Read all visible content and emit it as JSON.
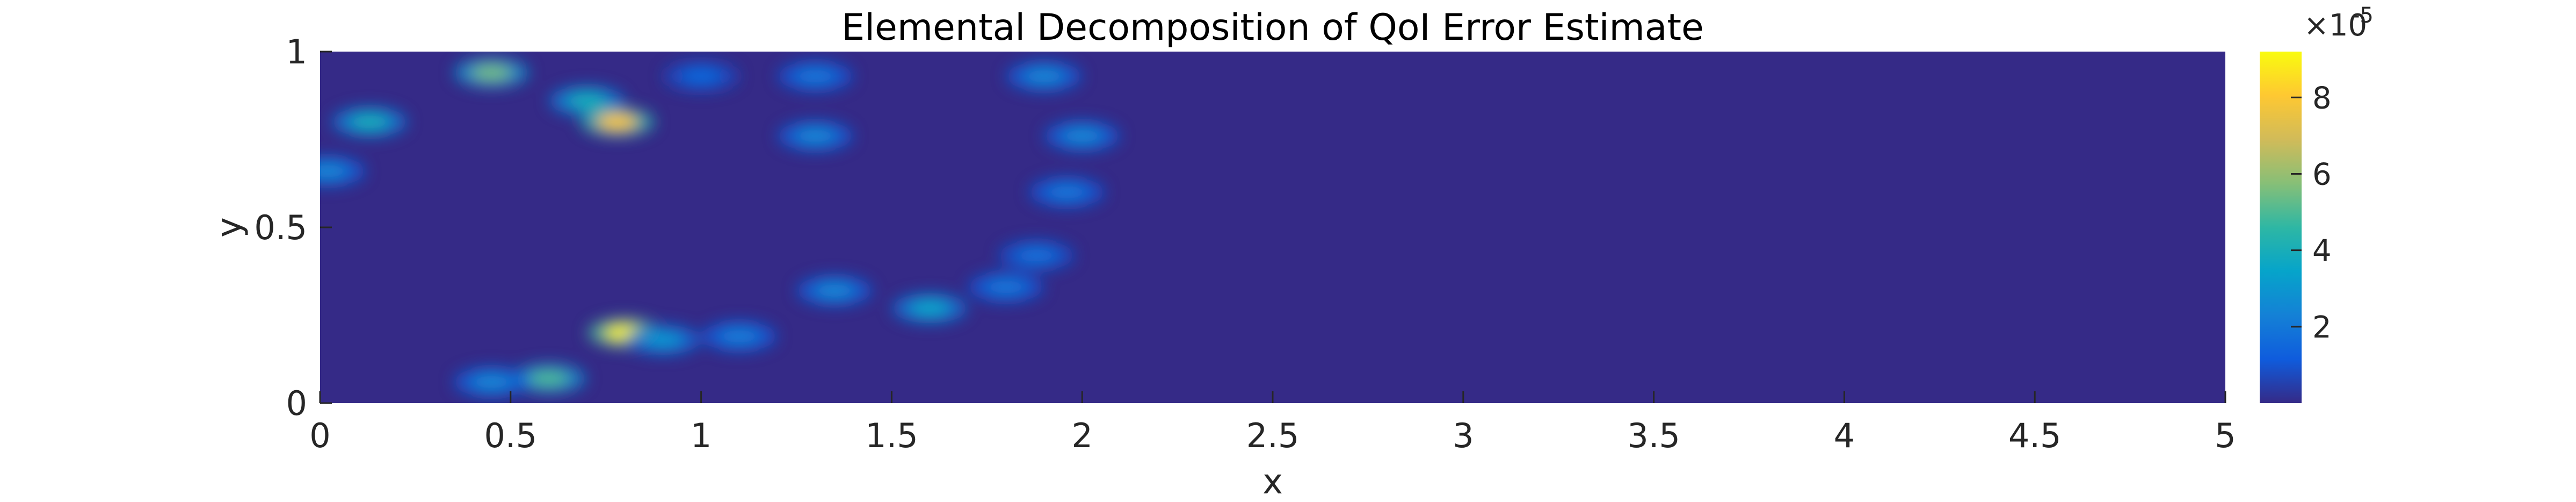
{
  "chart_data": {
    "type": "heatmap",
    "title": "Elemental Decomposition of QoI Error Estimate",
    "xlabel": "x",
    "ylabel": "y",
    "xlim": [
      0,
      5
    ],
    "ylim": [
      0,
      1
    ],
    "xticks": [
      "0",
      "0.5",
      "1",
      "1.5",
      "2",
      "2.5",
      "3",
      "3.5",
      "4",
      "4.5",
      "5"
    ],
    "yticks": [
      "0",
      "0.5",
      "1"
    ],
    "colormap": "parula",
    "colorbar": {
      "range": [
        0,
        9.2e-05
      ],
      "ticks": [
        "2",
        "4",
        "6",
        "8"
      ],
      "tick_values": [
        2e-05,
        4e-05,
        6e-05,
        8e-05
      ],
      "exponent_label": "×10",
      "exponent": "-5"
    },
    "grid": false,
    "hotspots": [
      {
        "x": 0.45,
        "y": 0.94,
        "value": 5.5e-05
      },
      {
        "x": 0.13,
        "y": 0.8,
        "value": 4e-05
      },
      {
        "x": 0.02,
        "y": 0.66,
        "value": 2.5e-05
      },
      {
        "x": 0.7,
        "y": 0.86,
        "value": 4e-05
      },
      {
        "x": 0.78,
        "y": 0.8,
        "value": 8e-05
      },
      {
        "x": 1.0,
        "y": 0.93,
        "value": 1.5e-05
      },
      {
        "x": 1.3,
        "y": 0.93,
        "value": 2e-05
      },
      {
        "x": 1.3,
        "y": 0.76,
        "value": 2.5e-05
      },
      {
        "x": 1.9,
        "y": 0.93,
        "value": 2.5e-05
      },
      {
        "x": 2.0,
        "y": 0.76,
        "value": 2.5e-05
      },
      {
        "x": 1.96,
        "y": 0.6,
        "value": 2e-05
      },
      {
        "x": 1.88,
        "y": 0.42,
        "value": 1.8e-05
      },
      {
        "x": 1.8,
        "y": 0.33,
        "value": 2e-05
      },
      {
        "x": 1.35,
        "y": 0.32,
        "value": 2.5e-05
      },
      {
        "x": 1.6,
        "y": 0.27,
        "value": 3.5e-05
      },
      {
        "x": 0.8,
        "y": 0.2,
        "value": 9e-05
      },
      {
        "x": 0.9,
        "y": 0.18,
        "value": 3e-05
      },
      {
        "x": 1.1,
        "y": 0.19,
        "value": 2.2e-05
      },
      {
        "x": 0.6,
        "y": 0.07,
        "value": 5e-05
      },
      {
        "x": 0.45,
        "y": 0.06,
        "value": 2.5e-05
      }
    ]
  }
}
